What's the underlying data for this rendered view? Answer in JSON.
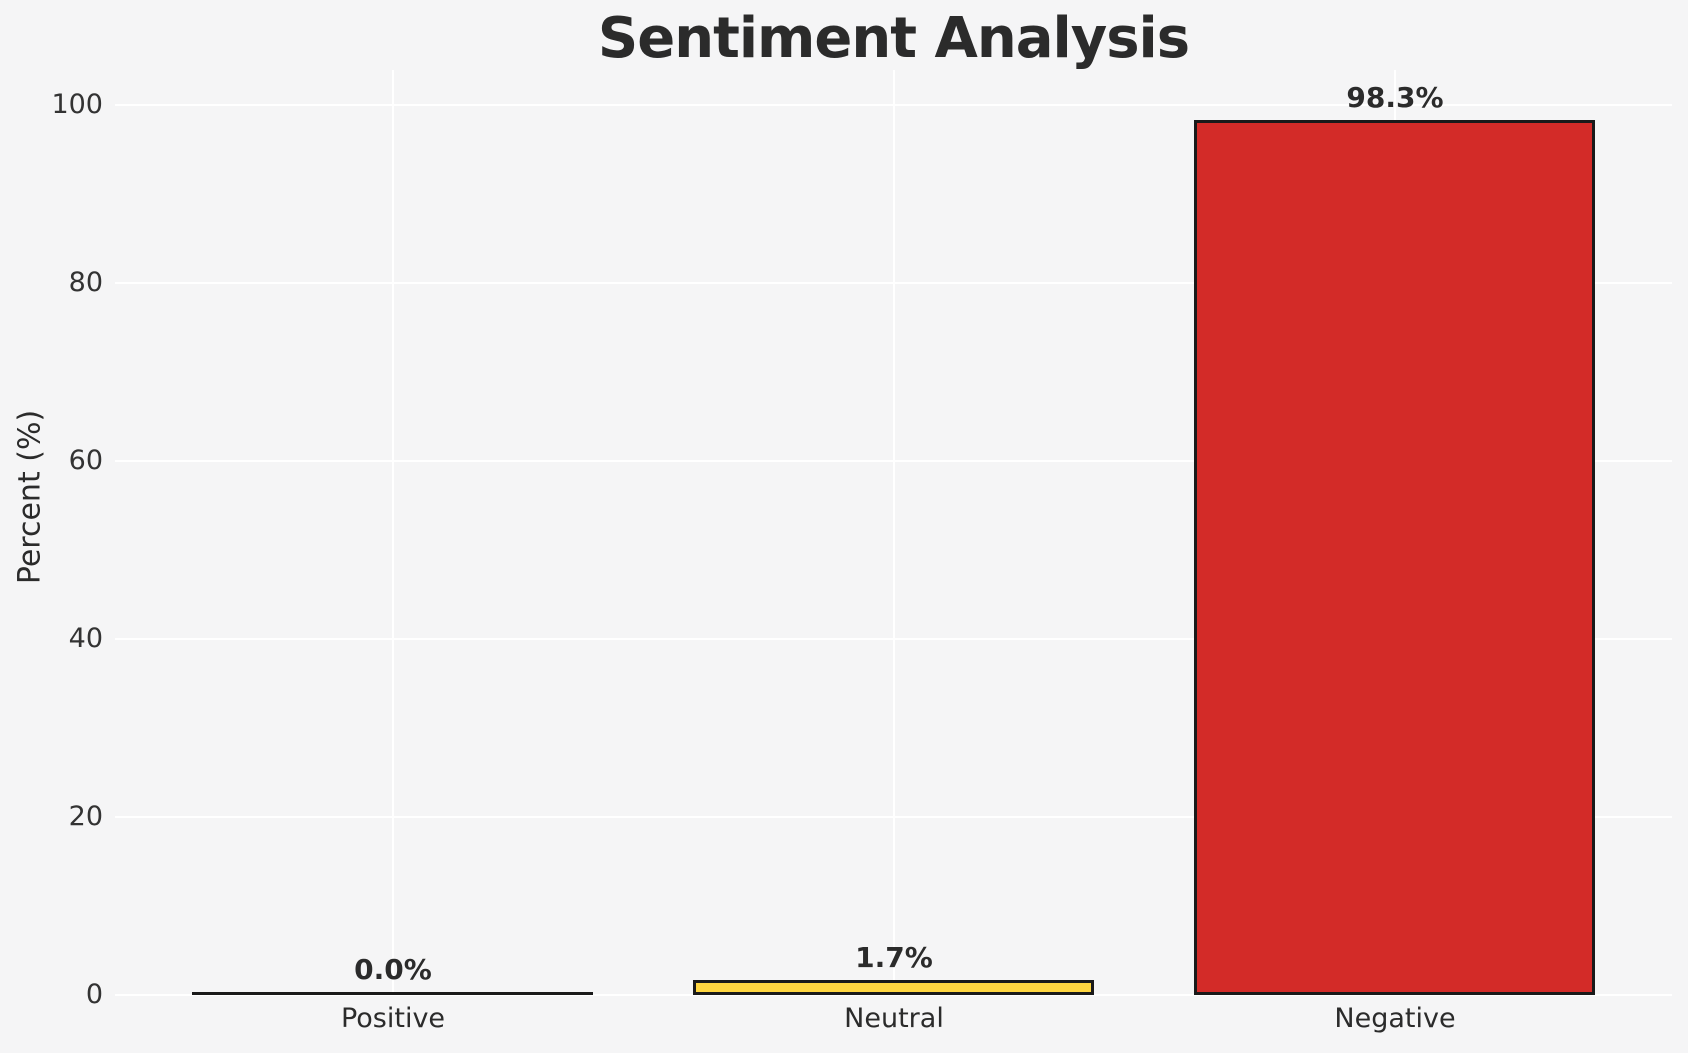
{
  "figure": {
    "background": "#f5f5f6"
  },
  "chart_data": {
    "type": "bar",
    "title": "Sentiment Analysis",
    "ylabel": "Percent (%)",
    "categories": [
      "Positive",
      "Neutral",
      "Negative"
    ],
    "values": [
      0.0,
      1.7,
      98.3
    ],
    "bar_labels": [
      "0.0%",
      "1.7%",
      "98.3%"
    ],
    "bar_colors": [
      "#cccccc",
      "#ffd640",
      "#d32b28"
    ],
    "bar_edge_color": "#1a1a1a",
    "yticks": [
      0,
      20,
      40,
      60,
      80,
      100
    ],
    "ylim": [
      0,
      104
    ],
    "grid": true,
    "grid_color": "#ffffff",
    "legend_position": "none"
  }
}
